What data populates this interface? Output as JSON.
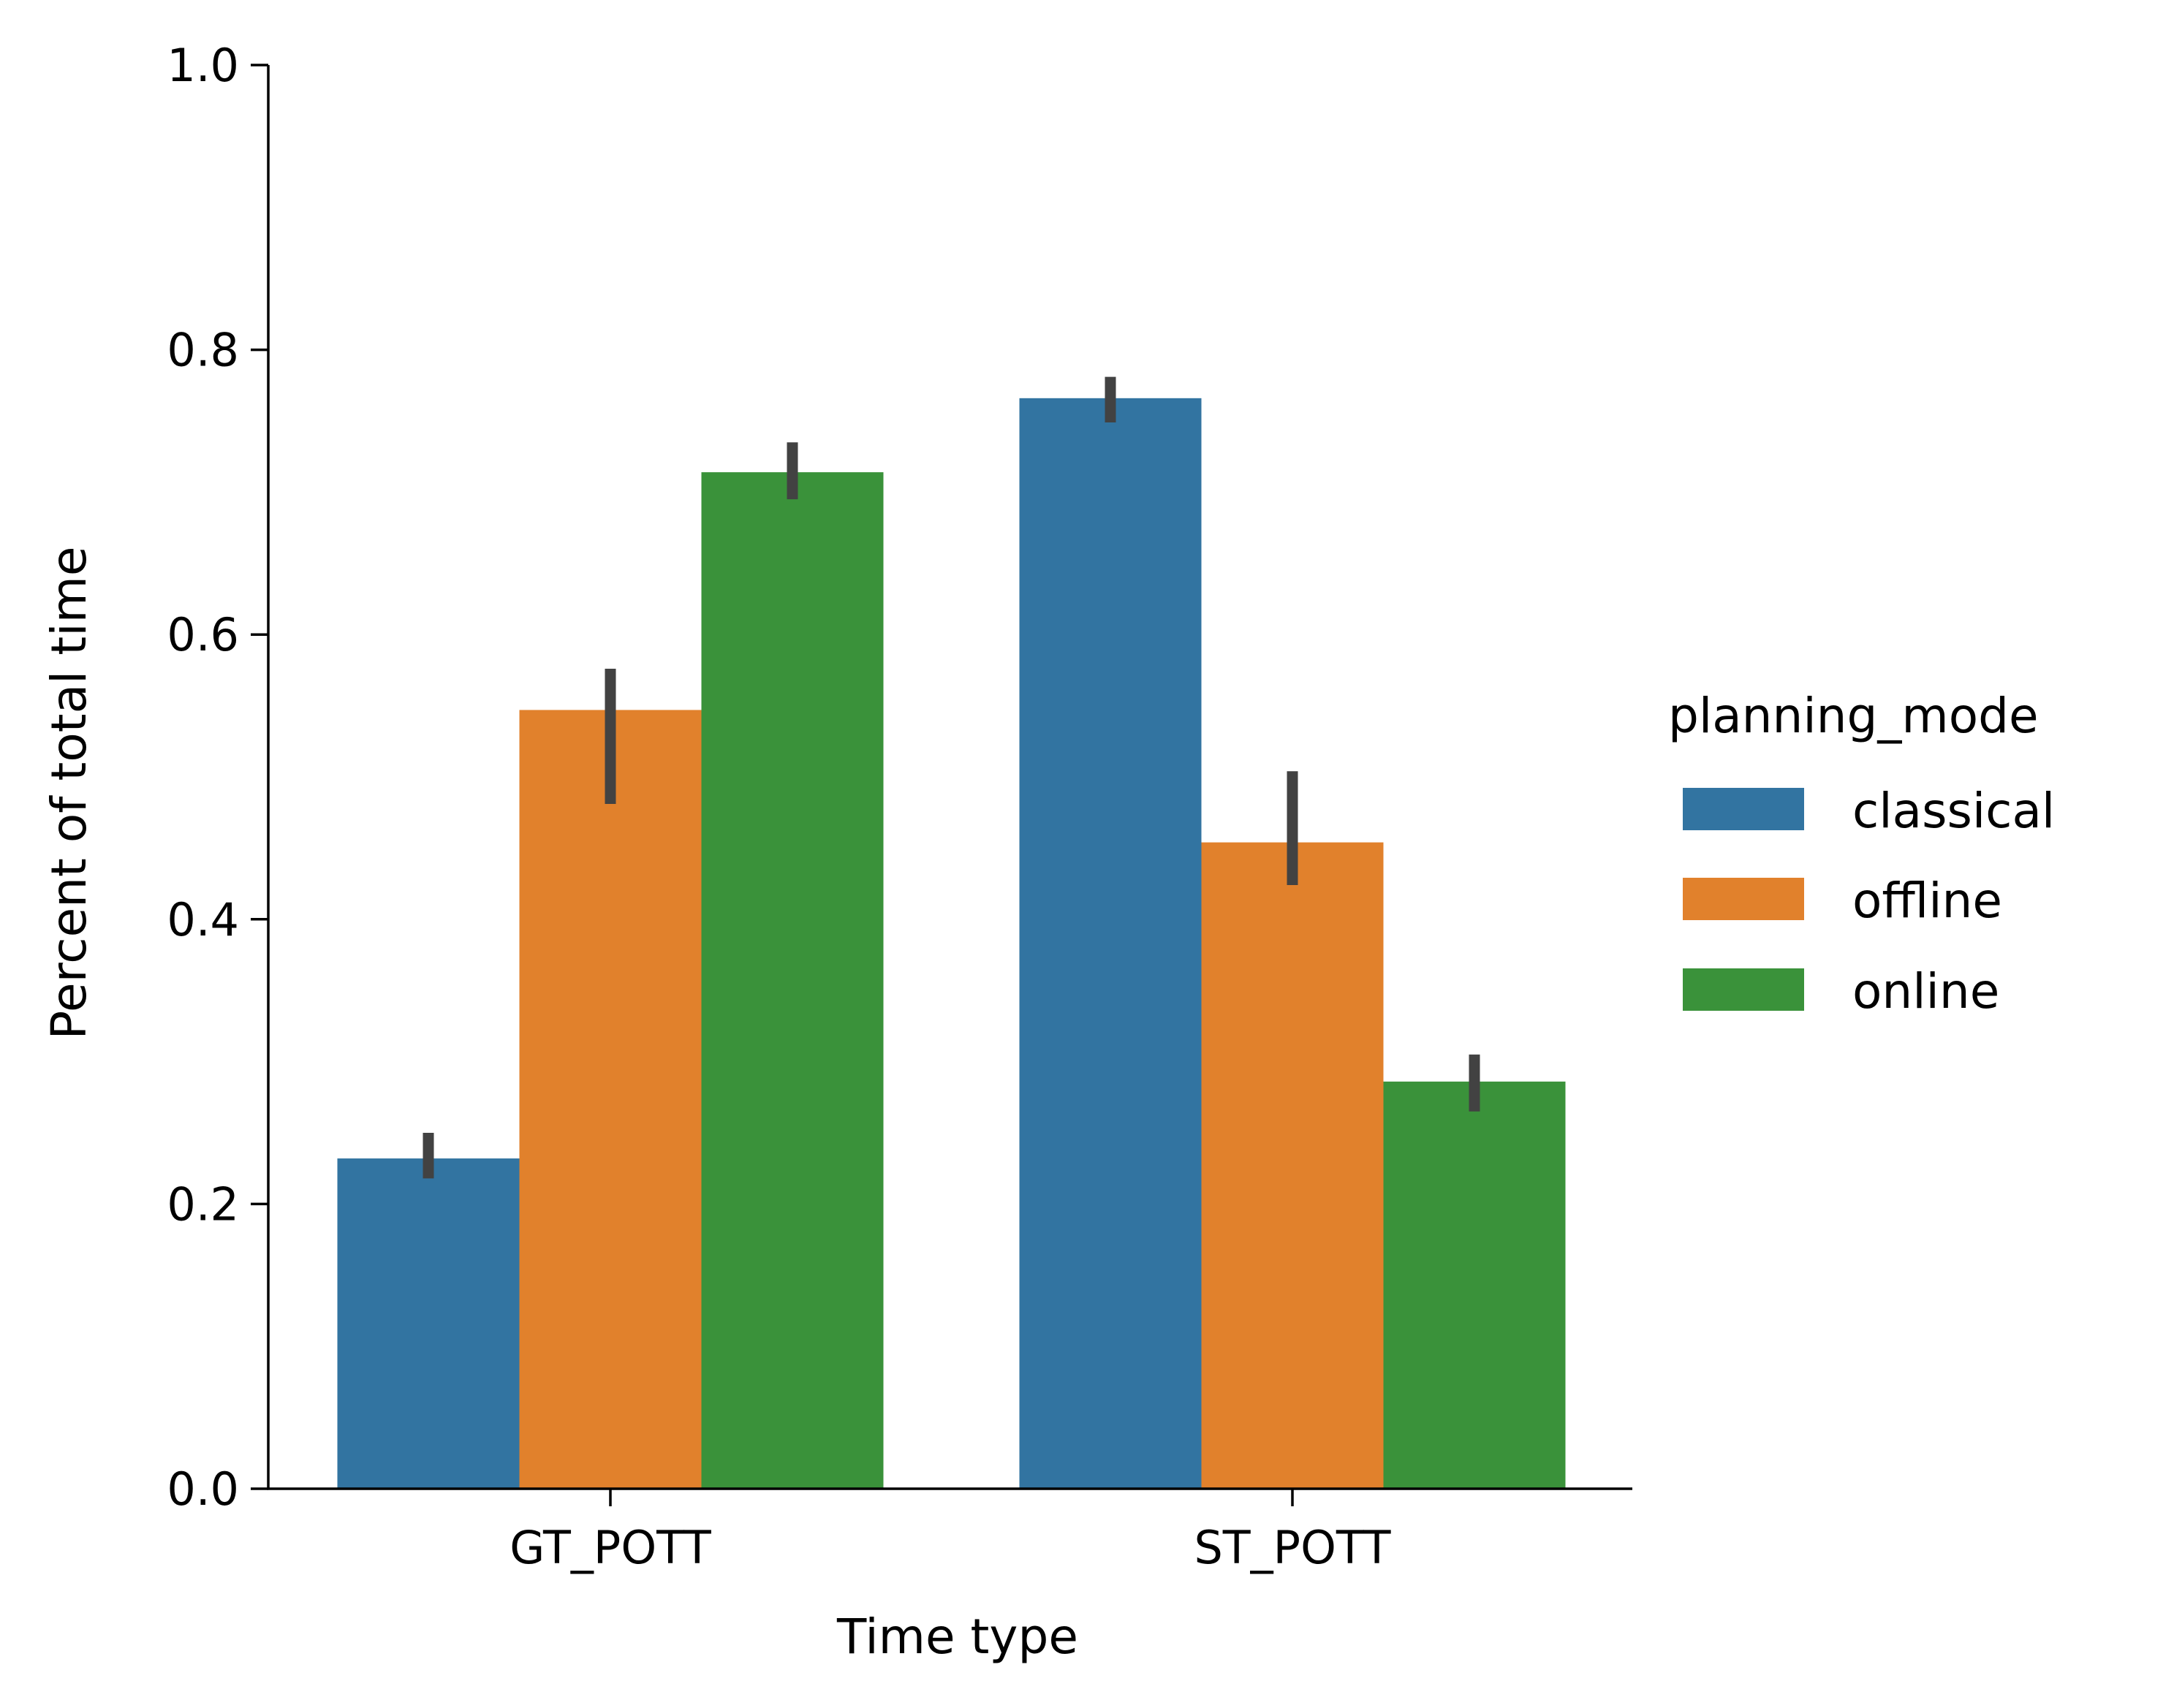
{
  "chart_data": {
    "type": "bar",
    "xlabel": "Time type",
    "ylabel": "Percent of total time",
    "categories": [
      "GT_POTT",
      "ST_POTT"
    ],
    "ylim": [
      0.0,
      1.0
    ],
    "yticks": [
      "0.0",
      "0.2",
      "0.4",
      "0.6",
      "0.8",
      "1.0"
    ],
    "grid": false,
    "legend": {
      "title": "planning_mode",
      "position": "right"
    },
    "series": [
      {
        "name": "classical",
        "color": "#3274a1",
        "values": [
          0.232,
          0.766
        ],
        "error": [
          [
            0.218,
            0.25
          ],
          [
            0.749,
            0.781
          ]
        ]
      },
      {
        "name": "offline",
        "color": "#e1812c",
        "values": [
          0.547,
          0.454
        ],
        "error": [
          [
            0.481,
            0.576
          ],
          [
            0.424,
            0.504
          ]
        ]
      },
      {
        "name": "online",
        "color": "#3a923a",
        "values": [
          0.714,
          0.286
        ],
        "error": [
          [
            0.695,
            0.735
          ],
          [
            0.265,
            0.305
          ]
        ]
      }
    ],
    "error_bar_color": "#424242"
  }
}
